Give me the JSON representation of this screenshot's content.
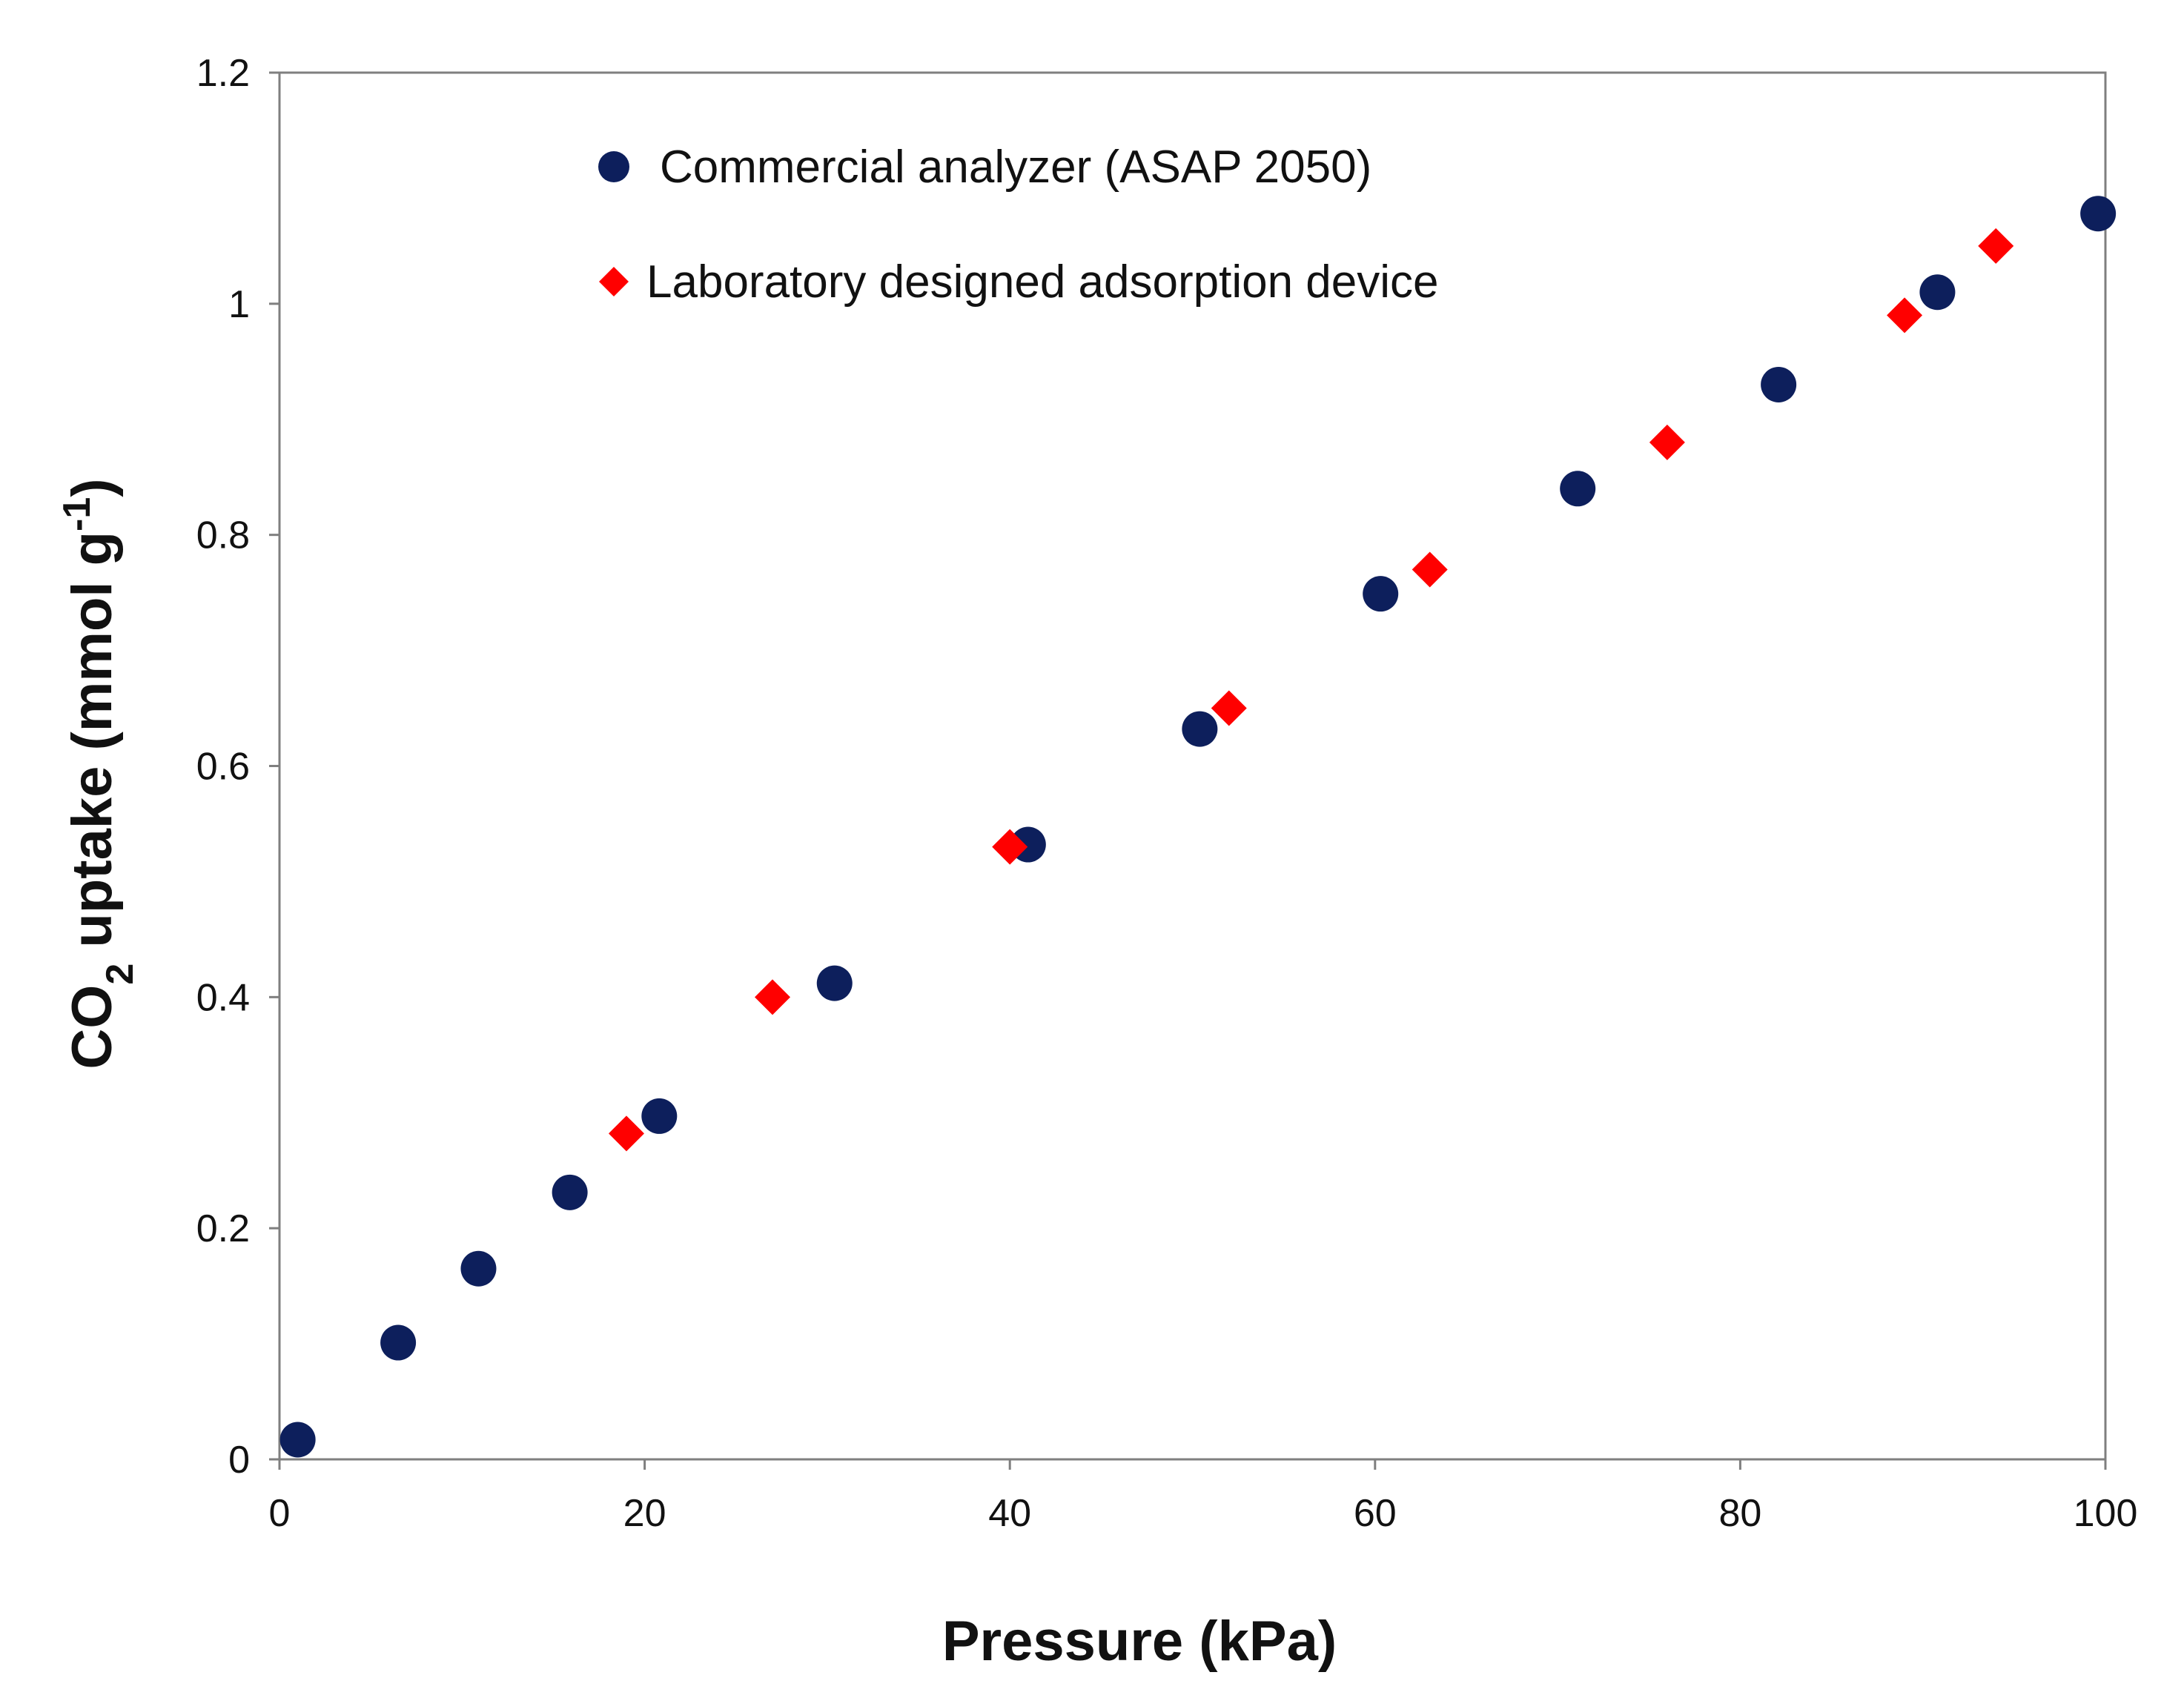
{
  "chart_data": {
    "type": "scatter",
    "title": "",
    "xlabel": "Pressure (kPa)",
    "ylabel": {
      "pre": "CO",
      "sub": "2",
      "mid": " uptake (mmol g",
      "sup": "-1",
      "post": ")"
    },
    "xlim": [
      0,
      100
    ],
    "ylim": [
      0,
      1.2
    ],
    "x_ticks": [
      0,
      20,
      40,
      60,
      80,
      100
    ],
    "x_tick_labels": [
      "0",
      "20",
      "40",
      "60",
      "80",
      "100"
    ],
    "y_ticks": [
      0,
      0.2,
      0.4,
      0.6,
      0.8,
      1.0,
      1.2
    ],
    "y_tick_labels": [
      "0",
      "0.2",
      "0.4",
      "0.6",
      "0.8",
      "1",
      "1.2"
    ],
    "grid": false,
    "legend_position": "top-left inside",
    "series": [
      {
        "name": "Commercial analyzer (ASAP 2050)",
        "marker": "circle",
        "color": "#0d1f5c",
        "points": [
          {
            "x": 1,
            "y": 0.017
          },
          {
            "x": 6.5,
            "y": 0.101
          },
          {
            "x": 10.9,
            "y": 0.165
          },
          {
            "x": 15.9,
            "y": 0.231
          },
          {
            "x": 20.8,
            "y": 0.297
          },
          {
            "x": 30.4,
            "y": 0.412
          },
          {
            "x": 41,
            "y": 0.532
          },
          {
            "x": 50.4,
            "y": 0.632
          },
          {
            "x": 60.3,
            "y": 0.749
          },
          {
            "x": 71.1,
            "y": 0.84
          },
          {
            "x": 82.1,
            "y": 0.93
          },
          {
            "x": 90.8,
            "y": 1.01
          },
          {
            "x": 99.6,
            "y": 1.078
          }
        ]
      },
      {
        "name": "Laboratory designed adsorption device",
        "marker": "diamond",
        "color": "#ff0000",
        "points": [
          {
            "x": 19,
            "y": 0.282
          },
          {
            "x": 27,
            "y": 0.4
          },
          {
            "x": 40,
            "y": 0.53
          },
          {
            "x": 52,
            "y": 0.65
          },
          {
            "x": 63,
            "y": 0.77
          },
          {
            "x": 76,
            "y": 0.88
          },
          {
            "x": 89,
            "y": 0.99
          },
          {
            "x": 94,
            "y": 1.05
          }
        ]
      }
    ]
  }
}
